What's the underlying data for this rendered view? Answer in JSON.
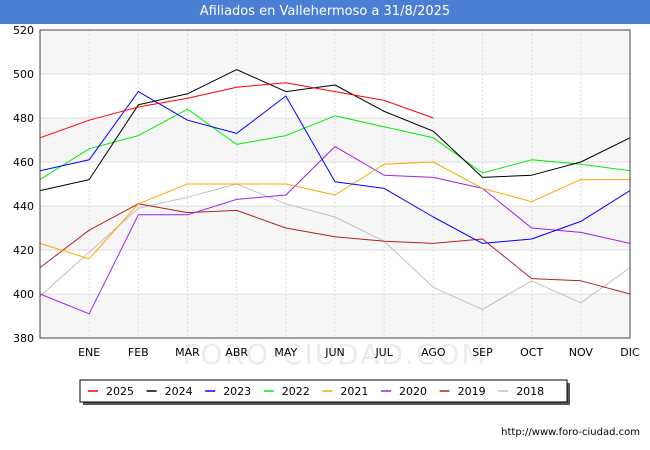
{
  "title": "Afiliados en Vallehermoso a 31/8/2025",
  "footer_url": "http://www.foro-ciudad.com",
  "watermark": "FORO-CIUDAD.COM",
  "chart_data": {
    "type": "line",
    "title": "Afiliados en Vallehermoso a 31/8/2025",
    "categories": [
      "",
      "ENE",
      "FEB",
      "MAR",
      "ABR",
      "MAY",
      "JUN",
      "JUL",
      "AGO",
      "SEP",
      "OCT",
      "NOV",
      "DIC"
    ],
    "ylim": [
      380,
      520
    ],
    "yticks": [
      380,
      400,
      420,
      440,
      460,
      480,
      500,
      520
    ],
    "grid": true,
    "legend_position": "bottom",
    "series": [
      {
        "name": "2025",
        "color": "#ff0000",
        "values": [
          471,
          479,
          485,
          489,
          494,
          496,
          492,
          488,
          480,
          null,
          null,
          null,
          null
        ]
      },
      {
        "name": "2024",
        "color": "#000000",
        "values": [
          447,
          452,
          486,
          491,
          502,
          492,
          495,
          483,
          474,
          453,
          454,
          460,
          471
        ]
      },
      {
        "name": "2023",
        "color": "#0000ff",
        "values": [
          456,
          461,
          492,
          479,
          473,
          490,
          451,
          448,
          435,
          423,
          425,
          433,
          447
        ]
      },
      {
        "name": "2022",
        "color": "#00ee00",
        "values": [
          452,
          466,
          472,
          484,
          468,
          472,
          481,
          476,
          471,
          455,
          461,
          459,
          456
        ]
      },
      {
        "name": "2021",
        "color": "#ffa500",
        "values": [
          423,
          416,
          441,
          450,
          450,
          450,
          445,
          459,
          460,
          448,
          442,
          452,
          452
        ]
      },
      {
        "name": "2020",
        "color": "#a020f0",
        "values": [
          400,
          391,
          436,
          436,
          443,
          445,
          467,
          454,
          453,
          448,
          430,
          428,
          423
        ]
      },
      {
        "name": "2019",
        "color": "#b22222",
        "values": [
          412,
          429,
          441,
          437,
          438,
          430,
          426,
          424,
          423,
          425,
          407,
          406,
          400
        ]
      },
      {
        "name": "2018",
        "color": "#c0c0c0",
        "values": [
          399,
          419,
          439,
          444,
          450,
          441,
          435,
          424,
          403,
          393,
          406,
          396,
          412
        ]
      }
    ]
  }
}
